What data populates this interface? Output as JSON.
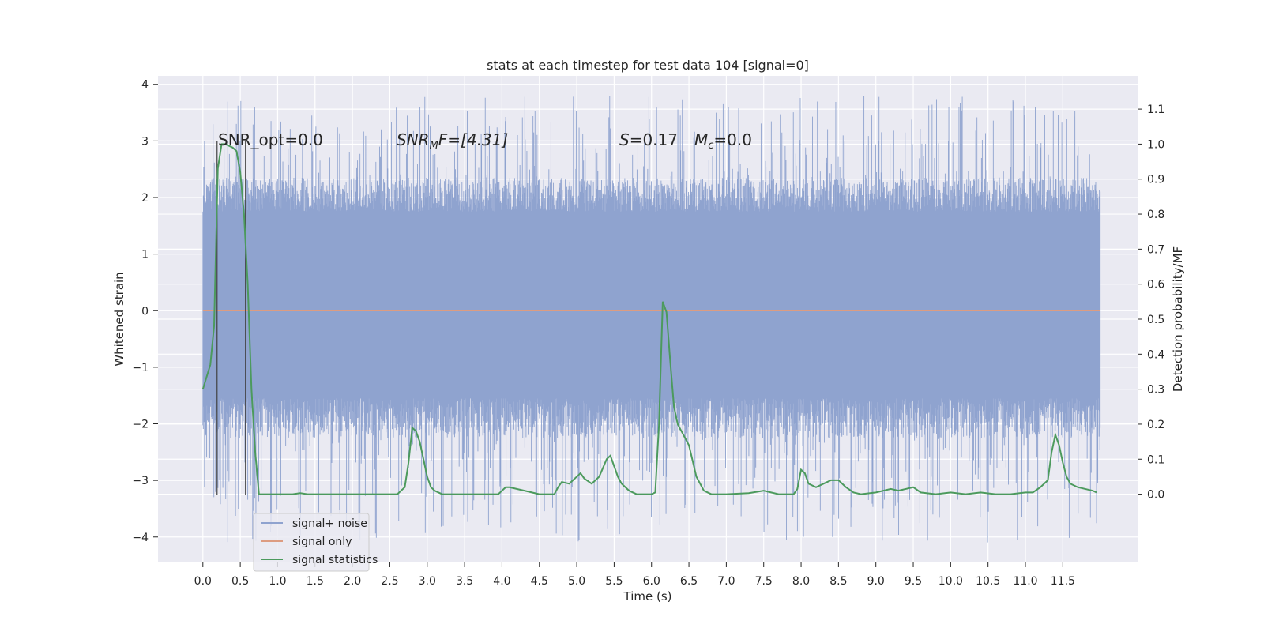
{
  "chart_data": {
    "type": "line",
    "title": "stats at each timestep for test data 104 [signal=0]",
    "xlabel": "Time (s)",
    "ylabel_left": "Whitened strain",
    "ylabel_right": "Detection probability/MF",
    "xlim": [
      -0.6,
      12.5
    ],
    "ylim_left": [
      -4.45,
      4.15
    ],
    "ylim_right": [
      -0.195,
      1.195
    ],
    "x_ticks": [
      "0.0",
      "0.5",
      "1.0",
      "1.5",
      "2.0",
      "2.5",
      "3.0",
      "3.5",
      "4.0",
      "4.5",
      "5.0",
      "5.5",
      "6.0",
      "6.5",
      "7.0",
      "7.5",
      "8.0",
      "8.5",
      "9.0",
      "9.5",
      "10.0",
      "10.5",
      "11.0",
      "11.5"
    ],
    "x_tick_values": [
      0.0,
      0.5,
      1.0,
      1.5,
      2.0,
      2.5,
      3.0,
      3.5,
      4.0,
      4.5,
      5.0,
      5.5,
      6.0,
      6.5,
      7.0,
      7.5,
      8.0,
      8.5,
      9.0,
      9.5,
      10.0,
      10.5,
      11.0,
      11.5
    ],
    "y_ticks_left": [
      "−4",
      "−3",
      "−2",
      "−1",
      "0",
      "1",
      "2",
      "3",
      "4"
    ],
    "y_tick_values_left": [
      -4,
      -3,
      -2,
      -1,
      0,
      1,
      2,
      3,
      4
    ],
    "y_ticks_right": [
      "0.0",
      "0.1",
      "0.2",
      "0.3",
      "0.4",
      "0.5",
      "0.6",
      "0.7",
      "0.8",
      "0.9",
      "1.0",
      "1.1"
    ],
    "y_tick_values_right": [
      0.0,
      0.1,
      0.2,
      0.3,
      0.4,
      0.5,
      0.6,
      0.7,
      0.8,
      0.9,
      1.0,
      1.1
    ],
    "grid": true,
    "legend_placement": "lower-left",
    "annotations": {
      "snr_opt": "SNR_opt=0.0",
      "snr_mf_main": "SNR",
      "snr_mf_sub": "M",
      "snr_mf_rest": "F=[4.31]",
      "s_main": "S",
      "s_rest": "=0.17",
      "mc_main": "M",
      "mc_sub": "c",
      "mc_rest": "=0.0"
    },
    "vertical_lines_x": [
      0.19,
      0.57
    ],
    "series": [
      {
        "name": "signal+ noise",
        "color": "#8fa3cf",
        "kind": "noise",
        "duration": 12.0,
        "core_band": [
          -1.55,
          1.75
        ],
        "extreme_range": [
          -4.1,
          3.8
        ]
      },
      {
        "name": "signal only",
        "color": "#dd9c81",
        "kind": "constant",
        "x": [
          0.0,
          12.0
        ],
        "y": [
          0.0,
          0.0
        ]
      },
      {
        "name": "signal statistics",
        "color": "#4c9a5d",
        "kind": "line",
        "x": [
          0.0,
          0.1,
          0.15,
          0.2,
          0.25,
          0.3,
          0.4,
          0.45,
          0.5,
          0.55,
          0.6,
          0.65,
          0.7,
          0.75,
          0.8,
          1.0,
          1.2,
          1.3,
          1.4,
          1.6,
          2.0,
          2.4,
          2.6,
          2.7,
          2.75,
          2.8,
          2.85,
          2.9,
          2.95,
          3.0,
          3.05,
          3.1,
          3.2,
          3.4,
          3.6,
          3.8,
          3.95,
          4.05,
          4.1,
          4.3,
          4.5,
          4.7,
          4.75,
          4.8,
          4.9,
          5.0,
          5.05,
          5.1,
          5.2,
          5.3,
          5.4,
          5.45,
          5.5,
          5.55,
          5.6,
          5.7,
          5.8,
          5.9,
          6.0,
          6.05,
          6.1,
          6.15,
          6.2,
          6.25,
          6.3,
          6.35,
          6.4,
          6.5,
          6.6,
          6.7,
          6.8,
          7.0,
          7.3,
          7.5,
          7.7,
          7.9,
          7.95,
          8.0,
          8.05,
          8.1,
          8.2,
          8.3,
          8.4,
          8.5,
          8.6,
          8.7,
          8.8,
          9.0,
          9.2,
          9.3,
          9.4,
          9.5,
          9.6,
          9.8,
          10.0,
          10.2,
          10.4,
          10.6,
          10.8,
          11.0,
          11.1,
          11.2,
          11.3,
          11.35,
          11.4,
          11.45,
          11.5,
          11.55,
          11.6,
          11.7,
          11.8,
          11.9,
          11.95
        ],
        "y": [
          0.3,
          0.37,
          0.48,
          0.93,
          1.0,
          1.0,
          0.99,
          0.98,
          0.92,
          0.8,
          0.6,
          0.3,
          0.12,
          0.0,
          0.0,
          0.0,
          0.0,
          0.003,
          0.0,
          0.0,
          0.0,
          0.0,
          0.0,
          0.02,
          0.09,
          0.19,
          0.18,
          0.15,
          0.1,
          0.05,
          0.02,
          0.01,
          0.0,
          0.0,
          0.0,
          0.0,
          0.0,
          0.02,
          0.02,
          0.01,
          0.0,
          0.0,
          0.02,
          0.035,
          0.03,
          0.05,
          0.06,
          0.045,
          0.03,
          0.05,
          0.1,
          0.11,
          0.08,
          0.05,
          0.03,
          0.01,
          0.0,
          0.0,
          0.0,
          0.005,
          0.2,
          0.55,
          0.52,
          0.38,
          0.25,
          0.2,
          0.18,
          0.14,
          0.05,
          0.01,
          0.0,
          0.0,
          0.003,
          0.01,
          0.0,
          0.0,
          0.015,
          0.07,
          0.06,
          0.03,
          0.02,
          0.03,
          0.04,
          0.04,
          0.02,
          0.005,
          0.0,
          0.005,
          0.015,
          0.01,
          0.015,
          0.02,
          0.005,
          0.0,
          0.005,
          0.0,
          0.005,
          0.0,
          0.0,
          0.005,
          0.005,
          0.02,
          0.04,
          0.12,
          0.17,
          0.14,
          0.09,
          0.05,
          0.03,
          0.02,
          0.015,
          0.01,
          0.005
        ]
      }
    ]
  }
}
